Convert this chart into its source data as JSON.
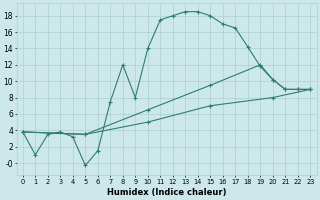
{
  "xlabel": "Humidex (Indice chaleur)",
  "xlim": [
    -0.5,
    23.5
  ],
  "ylim": [
    -1.5,
    19.5
  ],
  "xticks": [
    0,
    1,
    2,
    3,
    4,
    5,
    6,
    7,
    8,
    9,
    10,
    11,
    12,
    13,
    14,
    15,
    16,
    17,
    18,
    19,
    20,
    21,
    22,
    23
  ],
  "yticks": [
    0,
    2,
    4,
    6,
    8,
    10,
    12,
    14,
    16,
    18
  ],
  "ytick_labels": [
    "-0",
    "2",
    "4",
    "6",
    "8",
    "10",
    "12",
    "14",
    "16",
    "18"
  ],
  "background_color": "#cde8ea",
  "line_color": "#2e7d6e",
  "grid_color": "#aecfd2",
  "line1_x": [
    0,
    1,
    2,
    3,
    4,
    5,
    6,
    7,
    8,
    9,
    10,
    11,
    12,
    13,
    14,
    15,
    16,
    17,
    18,
    19,
    20,
    21,
    22,
    23
  ],
  "line1_y": [
    3.8,
    1.0,
    3.5,
    3.8,
    3.2,
    -0.3,
    1.5,
    7.5,
    12.0,
    8.0,
    14.0,
    17.5,
    18.0,
    18.5,
    18.5,
    18.0,
    17.0,
    16.5,
    14.2,
    11.8,
    10.2,
    9.0,
    9.0,
    9.0
  ],
  "line2_x": [
    0,
    5,
    10,
    15,
    19,
    20,
    21,
    22,
    23
  ],
  "line2_y": [
    3.8,
    3.5,
    6.5,
    9.5,
    12.0,
    10.2,
    9.0,
    9.0,
    9.0
  ],
  "line3_x": [
    0,
    5,
    10,
    15,
    20,
    23
  ],
  "line3_y": [
    3.8,
    3.5,
    5.0,
    7.0,
    8.0,
    9.0
  ]
}
